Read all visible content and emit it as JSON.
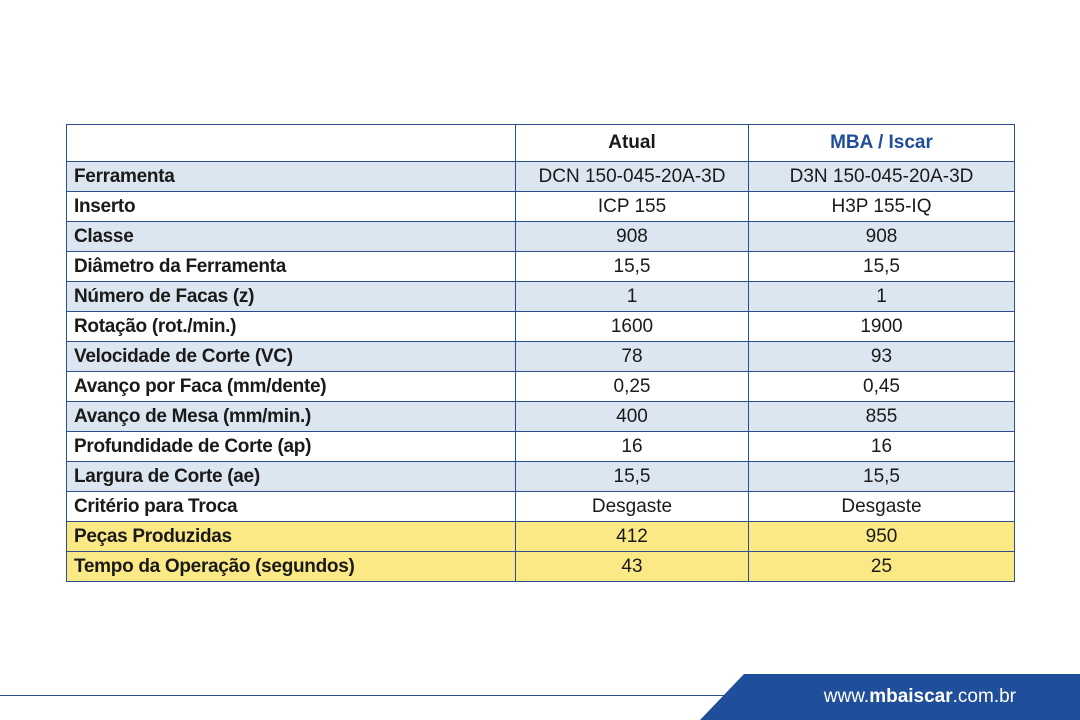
{
  "table": {
    "header": {
      "label": "",
      "col_a": "Atual",
      "col_b": "MBA / Iscar"
    },
    "rows": [
      {
        "label": "Ferramenta",
        "a": "DCN 150-045-20A-3D",
        "b": "D3N 150-045-20A-3D",
        "style": "blue"
      },
      {
        "label": "Inserto",
        "a": "ICP 155",
        "b": "H3P 155-IQ",
        "style": "white"
      },
      {
        "label": "Classe",
        "a": "908",
        "b": "908",
        "style": "blue"
      },
      {
        "label": "Diâmetro da Ferramenta",
        "a": "15,5",
        "b": "15,5",
        "style": "white"
      },
      {
        "label": "Número de Facas (z)",
        "a": "1",
        "b": "1",
        "style": "blue"
      },
      {
        "label": "Rotação (rot./min.)",
        "a": "1600",
        "b": "1900",
        "style": "white"
      },
      {
        "label": "Velocidade de Corte (VC)",
        "a": "78",
        "b": "93",
        "style": "blue"
      },
      {
        "label": "Avanço por Faca (mm/dente)",
        "a": "0,25",
        "b": "0,45",
        "style": "white"
      },
      {
        "label": "Avanço de Mesa (mm/min.)",
        "a": "400",
        "b": "855",
        "style": "blue"
      },
      {
        "label": "Profundidade de Corte (ap)",
        "a": "16",
        "b": "16",
        "style": "white"
      },
      {
        "label": "Largura de Corte (ae)",
        "a": "15,5",
        "b": "15,5",
        "style": "blue"
      },
      {
        "label": "Critério para Troca",
        "a": "Desgaste",
        "b": "Desgaste",
        "style": "white"
      },
      {
        "label": "Peças Produzidas",
        "a": "412",
        "b": "950",
        "style": "yellow"
      },
      {
        "label": "Tempo da Operação (segundos)",
        "a": "43",
        "b": "25",
        "style": "yellow"
      }
    ]
  },
  "footer": {
    "url_prefix": "www.",
    "url_brand": "mbaiscar",
    "url_suffix": ".com.br"
  },
  "colors": {
    "row_blue": "#dce6f1",
    "row_yellow": "#fbe985",
    "brand_blue": "#1f4f9a",
    "grid": "#2b4f8e"
  }
}
